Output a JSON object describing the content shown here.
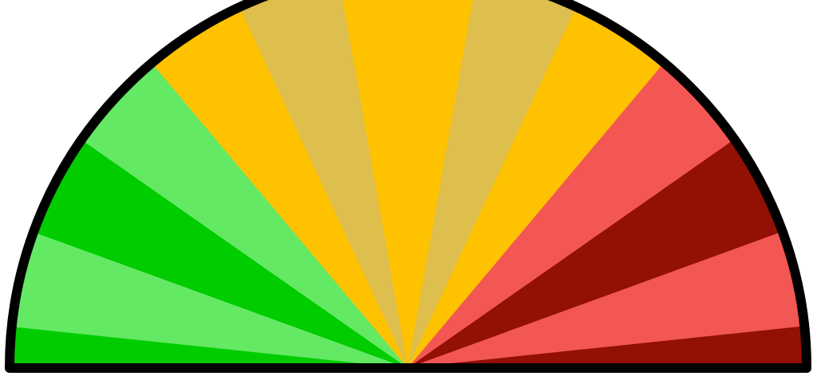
{
  "gauge": {
    "segments": [
      {
        "color": "#00cc00",
        "sweep_deg": 6
      },
      {
        "color": "#63e963",
        "sweep_deg": 14
      },
      {
        "color": "#00cc00",
        "sweep_deg": 15
      },
      {
        "color": "#63e963",
        "sweep_deg": 15
      },
      {
        "color": "#ffc200",
        "sweep_deg": 15
      },
      {
        "color": "#debe4c",
        "sweep_deg": 15
      },
      {
        "color": "#ffc200",
        "sweep_deg": 20
      },
      {
        "color": "#debe4c",
        "sweep_deg": 15
      },
      {
        "color": "#ffc200",
        "sweep_deg": 15
      },
      {
        "color": "#f35753",
        "sweep_deg": 15
      },
      {
        "color": "#921104",
        "sweep_deg": 15
      },
      {
        "color": "#f35753",
        "sweep_deg": 14
      },
      {
        "color": "#921104",
        "sweep_deg": 6
      }
    ],
    "outline_color": "#000000"
  }
}
